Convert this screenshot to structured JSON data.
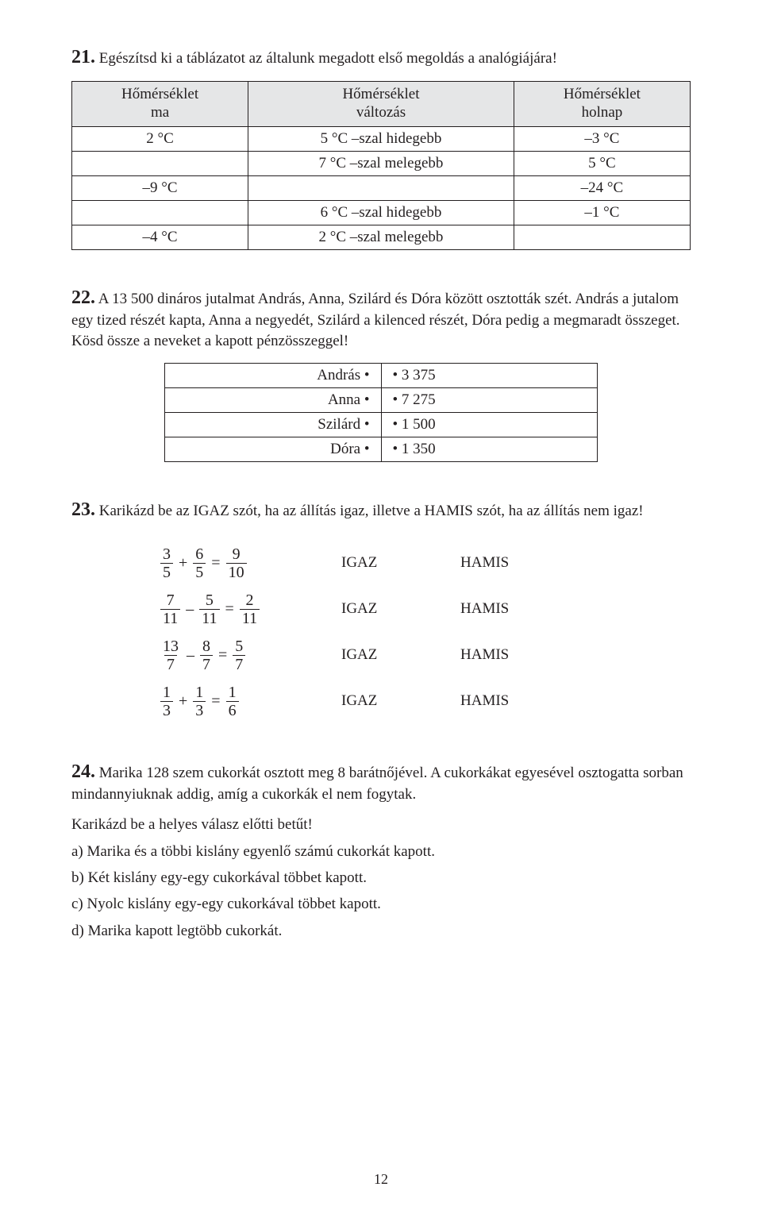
{
  "q21": {
    "num": "21.",
    "text": "Egészítsd ki a táblázatot az általunk megadott első megoldás a analógiájára!",
    "headers": {
      "c1a": "Hőmérséklet",
      "c1b": "ma",
      "c2a": "Hőmérséklet",
      "c2b": "változás",
      "c3a": "Hőmérséklet",
      "c3b": "holnap"
    },
    "rows": [
      {
        "a": "2 °C",
        "b": "5 °C –szal hidegebb",
        "c": "–3 °C"
      },
      {
        "a": "",
        "b": "7 °C –szal melegebb",
        "c": "5 °C"
      },
      {
        "a": "–9 °C",
        "b": "",
        "c": "–24 °C"
      },
      {
        "a": "",
        "b": "6 °C –szal hidegebb",
        "c": "–1 °C"
      },
      {
        "a": "–4 °C",
        "b": "2 °C –szal melegebb",
        "c": ""
      }
    ]
  },
  "q22": {
    "num": "22.",
    "text": "A 13 500 dináros jutalmat András, Anna, Szilárd és Dóra között osztották szét. András a jutalom egy tized részét kapta, Anna a negyedét, Szilárd a kilenced részét, Dóra pedig a megmaradt összeget. Kösd össze a neveket a kapott pénzösszeggel!",
    "pairs": [
      {
        "name": "András",
        "value": "3 375"
      },
      {
        "name": "Anna",
        "value": "7 275"
      },
      {
        "name": "Szilárd",
        "value": "1 500"
      },
      {
        "name": "Dóra",
        "value": "1 350"
      }
    ]
  },
  "q23": {
    "num": "23.",
    "text": "Karikázd be az IGAZ szót, ha az állítás igaz, illetve a HAMIS szót, ha az állítás nem igaz!",
    "labels": {
      "true": "IGAZ",
      "false": "HAMIS"
    },
    "eqs": [
      {
        "a_n": "3",
        "a_d": "5",
        "op": "+",
        "b_n": "6",
        "b_d": "5",
        "r_n": "9",
        "r_d": "10"
      },
      {
        "a_n": "7",
        "a_d": "11",
        "op": "–",
        "b_n": "5",
        "b_d": "11",
        "r_n": "2",
        "r_d": "11"
      },
      {
        "a_n": "13",
        "a_d": "7",
        "op": "–",
        "b_n": "8",
        "b_d": "7",
        "r_n": "5",
        "r_d": "7"
      },
      {
        "a_n": "1",
        "a_d": "3",
        "op": "+",
        "b_n": "1",
        "b_d": "3",
        "r_n": "1",
        "r_d": "6"
      }
    ]
  },
  "q24": {
    "num": "24.",
    "text1": "Marika 128 szem cukorkát osztott meg 8 barátnőjével. A cukorkákat egyesével osztogatta sorban mindannyiuknak addig, amíg a cukorkák el nem fogytak.",
    "prompt": "Karikázd be a helyes válasz előtti betűt!",
    "options": [
      "a) Marika és a többi kislány egyenlő számú cukorkát kapott.",
      "b) Két kislány egy-egy cukorkával többet kapott.",
      "c) Nyolc kislány egy-egy cukorkával többet kapott.",
      "d) Marika kapott legtöbb cukorkát."
    ]
  },
  "pageNumber": "12",
  "style": {
    "headerBg": "#e5e6e7",
    "border": "#231f20",
    "text": "#231f20",
    "fontFamily": "Minion Pro / Times New Roman",
    "bodyFontSizePt": 14,
    "numFontSizePt": 18
  }
}
